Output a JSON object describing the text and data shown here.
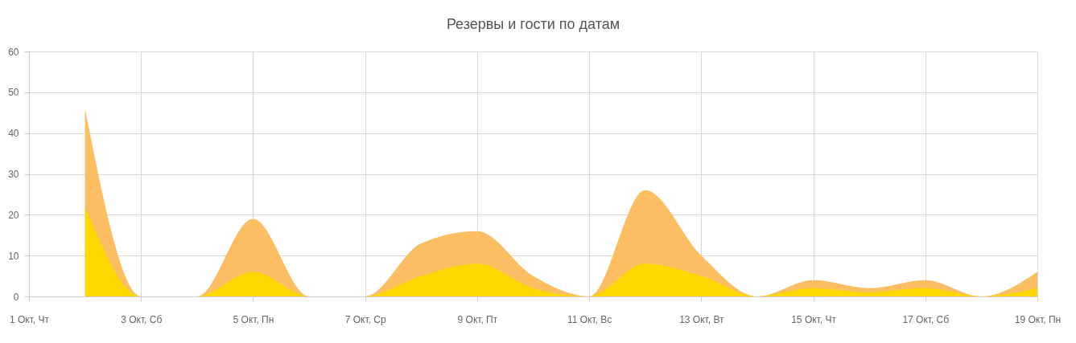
{
  "chart_data": {
    "type": "area",
    "title": "Резервы и гости по датам",
    "x": [
      "--10-02",
      "--10-03",
      "--10-04",
      "--10-05",
      "--10-06",
      "--10-07",
      "--10-08",
      "--10-09",
      "--10-10",
      "--10-11",
      "--10-12",
      "--10-13",
      "--10-14",
      "--10-15",
      "--10-16",
      "--10-17",
      "--10-18",
      "--10-19"
    ],
    "series": [
      {
        "color": "#fdbe63",
        "values": [
          46,
          0,
          0,
          19,
          0,
          0,
          13,
          16,
          5,
          0,
          26,
          10,
          0,
          4,
          2,
          4,
          0,
          6
        ]
      },
      {
        "color": "#ffd800",
        "values": [
          22,
          0,
          0,
          6,
          0,
          0,
          5,
          8,
          2,
          0,
          8,
          5,
          0,
          2,
          1,
          2,
          0,
          2
        ]
      }
    ],
    "xlim": [
      "--10-01",
      "--10-19"
    ],
    "xticks": [
      {
        "value": "--10-01",
        "label": "1 Окт, Чт"
      },
      {
        "value": "--10-03",
        "label": "3 Окт, Сб"
      },
      {
        "value": "--10-05",
        "label": "5 Окт, Пн"
      },
      {
        "value": "--10-07",
        "label": "7 Окт, Ср"
      },
      {
        "value": "--10-09",
        "label": "9 Окт, Пт"
      },
      {
        "value": "--10-11",
        "label": "11 Окт, Вс"
      },
      {
        "value": "--10-13",
        "label": "13 Окт, Вт"
      },
      {
        "value": "--10-15",
        "label": "15 Окт, Чт"
      },
      {
        "value": "--10-17",
        "label": "17 Окт, Сб"
      },
      {
        "value": "--10-19",
        "label": "19 Окт, Пн"
      }
    ],
    "ylim": [
      0,
      60
    ],
    "yticks": [
      0,
      10,
      20,
      30,
      40,
      50,
      60
    ],
    "grid": true
  }
}
